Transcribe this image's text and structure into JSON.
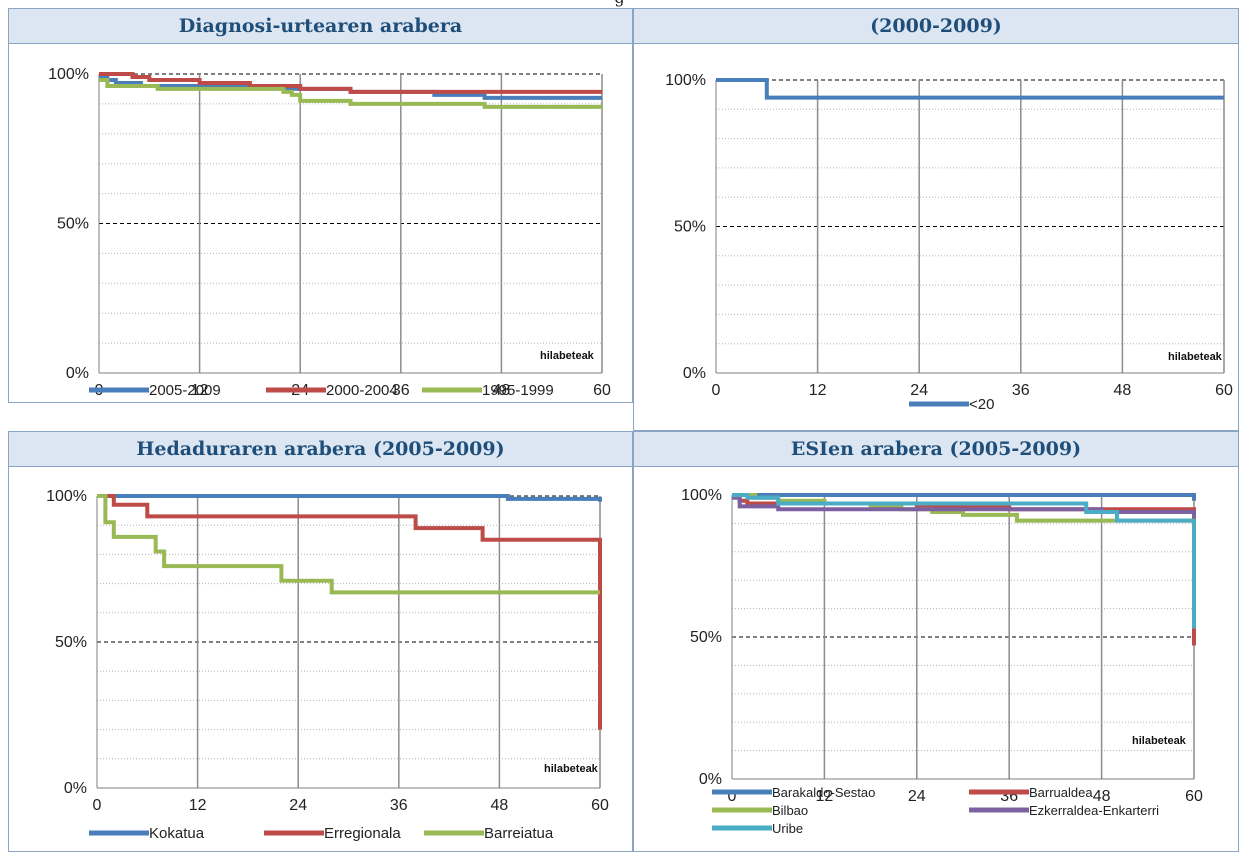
{
  "top_caption": "g",
  "panels": [
    {
      "title": "Diagnosi-urtearen arabera",
      "x_unit_label": "hilabeteak",
      "legend": [
        "2005-2009",
        "2000-2004",
        "1995-1999"
      ],
      "colors": [
        "#4a7ebb",
        "#be4b48",
        "#98b954"
      ]
    },
    {
      "title": "(2000-2009)",
      "x_unit_label": "hilabeteak",
      "legend": [
        "<20"
      ],
      "colors": [
        "#4a7ebb"
      ]
    },
    {
      "title": "Hedaduraren arabera (2005-2009)",
      "x_unit_label": "hilabeteak",
      "legend": [
        "Kokatua",
        "Erregionala",
        "Barreiatua"
      ],
      "colors": [
        "#4a7ebb",
        "#be4b48",
        "#98b954"
      ]
    },
    {
      "title": "ESIen arabera (2005-2009)",
      "x_unit_label": "hilabeteak",
      "legend": [
        "Barakaldo-Sestao",
        "Barrualdea",
        "Bilbao",
        "Ezkerraldea-Enkarterri",
        "Uribe"
      ],
      "colors": [
        "#4a7ebb",
        "#be4b48",
        "#98b954",
        "#7d60a0",
        "#4bacc6"
      ]
    }
  ],
  "chart_data": [
    {
      "type": "line",
      "title": "Diagnosi-urtearen arabera",
      "xlabel": "hilabeteak",
      "ylabel": "",
      "xlim": [
        0,
        60
      ],
      "ylim": [
        0,
        100
      ],
      "x_ticks": [
        "0",
        "12",
        "24",
        "36",
        "48",
        "60"
      ],
      "y_ticks": [
        "0%",
        "50%",
        "100%"
      ],
      "grid": true,
      "legend_position": "bottom",
      "series": [
        {
          "name": "2005-2009",
          "x": [
            0,
            1,
            2,
            3,
            5,
            8,
            12,
            18,
            22,
            24,
            30,
            36,
            40,
            44,
            46,
            50,
            60
          ],
          "y": [
            99,
            98,
            97,
            97,
            96,
            96,
            96,
            96,
            95,
            95,
            94,
            94,
            93,
            93,
            92,
            92,
            92
          ]
        },
        {
          "name": "2000-2004",
          "x": [
            0,
            4,
            6,
            12,
            18,
            24,
            30,
            38,
            45,
            60
          ],
          "y": [
            100,
            99,
            98,
            97,
            96,
            95,
            94,
            94,
            94,
            94
          ]
        },
        {
          "name": "1995-1999",
          "x": [
            0,
            1,
            2,
            7,
            12,
            20,
            22,
            23,
            24,
            28,
            30,
            36,
            44,
            46,
            60
          ],
          "y": [
            98,
            96,
            96,
            95,
            95,
            95,
            94,
            93,
            91,
            91,
            90,
            90,
            90,
            89,
            89
          ]
        }
      ]
    },
    {
      "type": "line",
      "title": "(2000-2009)",
      "xlabel": "hilabeteak",
      "ylabel": "",
      "xlim": [
        0,
        60
      ],
      "ylim": [
        0,
        100
      ],
      "x_ticks": [
        "0",
        "12",
        "24",
        "36",
        "48",
        "60"
      ],
      "y_ticks": [
        "0%",
        "50%",
        "100%"
      ],
      "grid": true,
      "legend_position": "bottom",
      "series": [
        {
          "name": "<20",
          "x": [
            0,
            6,
            60
          ],
          "y": [
            100,
            94,
            94
          ]
        }
      ]
    },
    {
      "type": "line",
      "title": "Hedaduraren arabera (2005-2009)",
      "xlabel": "hilabeteak",
      "ylabel": "",
      "xlim": [
        0,
        60
      ],
      "ylim": [
        0,
        100
      ],
      "x_ticks": [
        "0",
        "12",
        "24",
        "36",
        "48",
        "60"
      ],
      "y_ticks": [
        "0%",
        "50%",
        "100%"
      ],
      "grid": true,
      "legend_position": "bottom",
      "series": [
        {
          "name": "Kokatua",
          "x": [
            0,
            49,
            60,
            60
          ],
          "y": [
            100,
            99,
            99,
            98
          ]
        },
        {
          "name": "Erregionala",
          "x": [
            0,
            1,
            2,
            6,
            12,
            24,
            38,
            46,
            60,
            60
          ],
          "y": [
            100,
            100,
            97,
            93,
            93,
            93,
            89,
            85,
            85,
            20
          ]
        },
        {
          "name": "Barreiatua",
          "x": [
            0,
            1,
            2,
            7,
            8,
            22,
            28,
            60
          ],
          "y": [
            100,
            91,
            86,
            81,
            76,
            71,
            67,
            67
          ]
        }
      ]
    },
    {
      "type": "line",
      "title": "ESIen arabera (2005-2009)",
      "xlabel": "hilabeteak",
      "ylabel": "",
      "xlim": [
        0,
        60
      ],
      "ylim": [
        0,
        100
      ],
      "x_ticks": [
        "0",
        "12",
        "24",
        "36",
        "48",
        "60"
      ],
      "y_ticks": [
        "0%",
        "50%",
        "100%"
      ],
      "grid": true,
      "legend_position": "bottom",
      "series": [
        {
          "name": "Barakaldo-Sestao",
          "x": [
            0,
            60,
            60
          ],
          "y": [
            100,
            100,
            98
          ]
        },
        {
          "name": "Barrualdea",
          "x": [
            0,
            1,
            2,
            5,
            12,
            24,
            36,
            48,
            60,
            60
          ],
          "y": [
            100,
            98,
            97,
            97,
            97,
            96,
            95,
            95,
            95,
            47
          ]
        },
        {
          "name": "Bilbao",
          "x": [
            0,
            3,
            6,
            12,
            18,
            22,
            26,
            30,
            37,
            44,
            60,
            60
          ],
          "y": [
            100,
            99,
            98,
            97,
            96,
            95,
            94,
            93,
            91,
            91,
            91,
            90
          ]
        },
        {
          "name": "Ezkerraldea-Enkarterri",
          "x": [
            0,
            1,
            6,
            12,
            24,
            36,
            48,
            60,
            60
          ],
          "y": [
            99,
            96,
            95,
            95,
            95,
            95,
            94,
            94,
            92
          ]
        },
        {
          "name": "Uribe",
          "x": [
            0,
            2,
            6,
            12,
            24,
            36,
            46,
            50,
            60,
            60
          ],
          "y": [
            100,
            99,
            97,
            97,
            97,
            97,
            94,
            91,
            91,
            53
          ]
        }
      ]
    }
  ]
}
